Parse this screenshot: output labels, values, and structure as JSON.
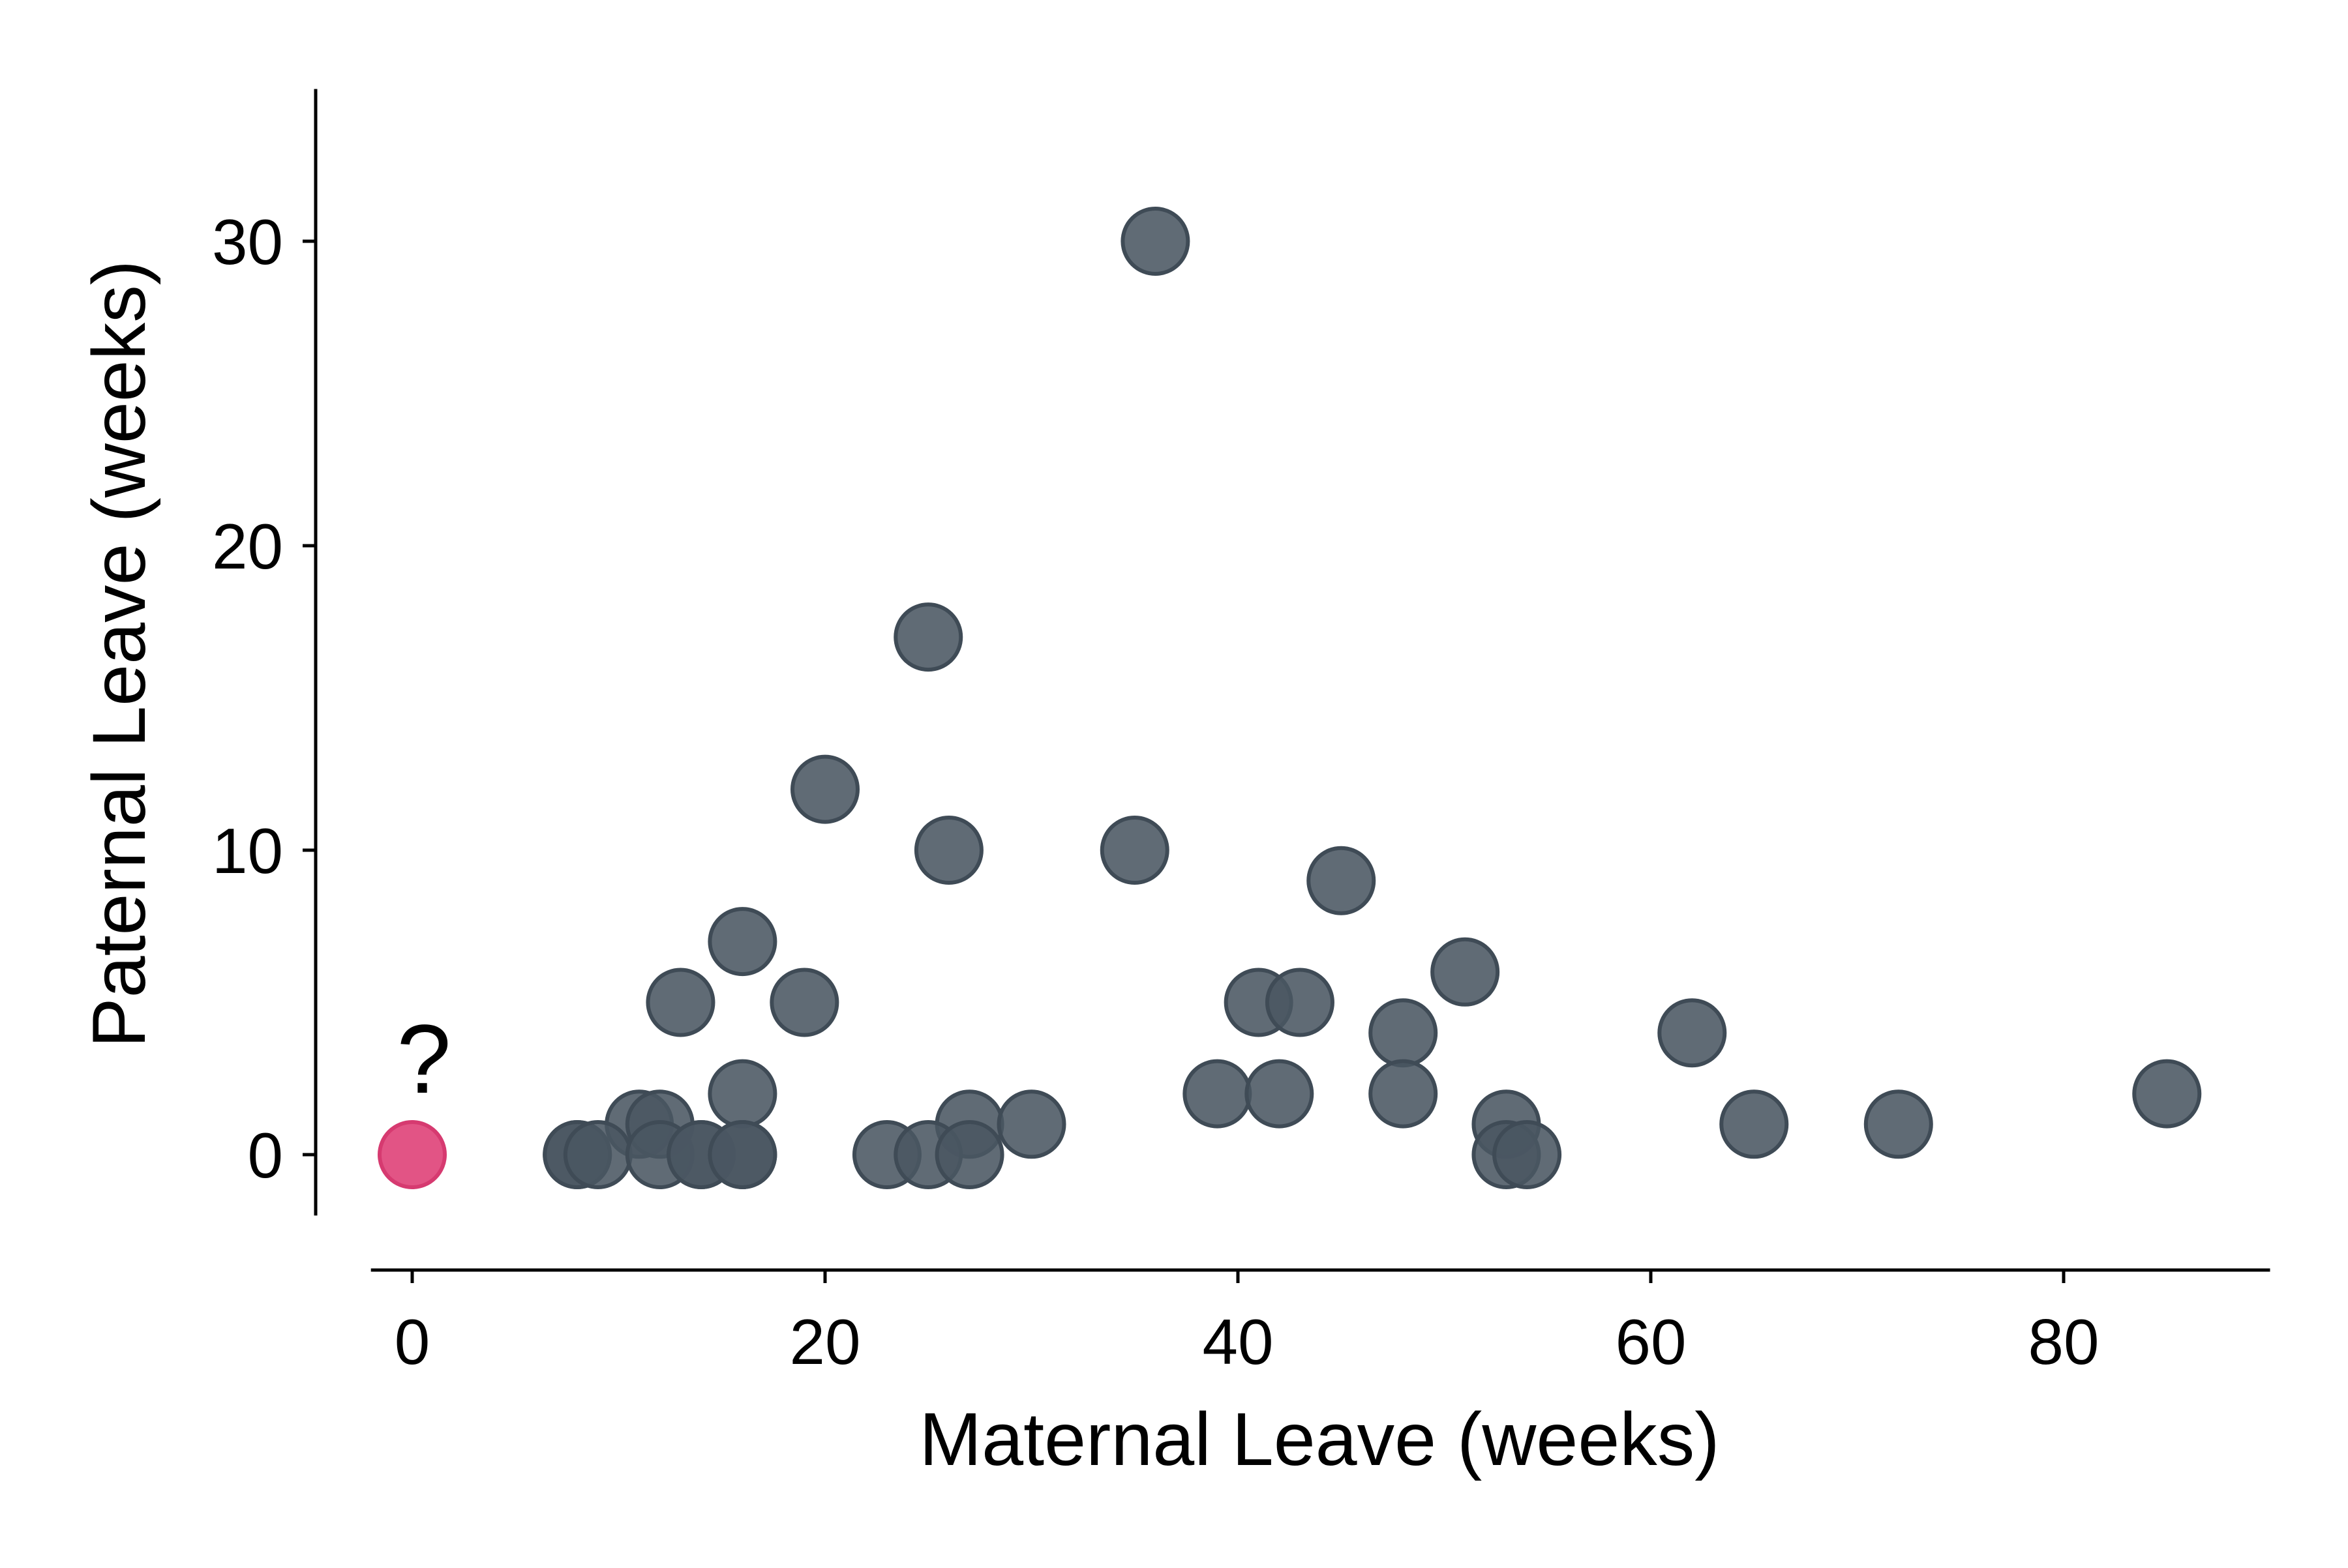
{
  "chart_data": {
    "type": "scatter",
    "title": "",
    "xlabel": "Maternal Leave (weeks)",
    "ylabel": "Paternal Leave (weeks)",
    "xlim": [
      -2,
      90
    ],
    "ylim": [
      -2,
      35
    ],
    "xticks": [
      0,
      20,
      40,
      60,
      80
    ],
    "yticks": [
      0,
      10,
      20,
      30
    ],
    "xtick_labels": [
      "0",
      "20",
      "40",
      "60",
      "80"
    ],
    "ytick_labels": [
      "0",
      "10",
      "20",
      "30"
    ],
    "grid": false,
    "legend": "none",
    "colors": {
      "points": "#4a5762",
      "point_edge": "#3f4b56",
      "highlight": "#e0457b",
      "highlight_edge": "#d63a70"
    },
    "series": [
      {
        "points": [
          {
            "x": 36,
            "y": 30
          },
          {
            "x": 25,
            "y": 17
          },
          {
            "x": 20,
            "y": 12
          },
          {
            "x": 26,
            "y": 10
          },
          {
            "x": 35,
            "y": 10
          },
          {
            "x": 45,
            "y": 9
          },
          {
            "x": 16,
            "y": 7
          },
          {
            "x": 51,
            "y": 6
          },
          {
            "x": 13,
            "y": 5
          },
          {
            "x": 19,
            "y": 5
          },
          {
            "x": 41,
            "y": 5
          },
          {
            "x": 43,
            "y": 5
          },
          {
            "x": 48,
            "y": 4
          },
          {
            "x": 62,
            "y": 4
          },
          {
            "x": 16,
            "y": 2
          },
          {
            "x": 39,
            "y": 2
          },
          {
            "x": 42,
            "y": 2
          },
          {
            "x": 48,
            "y": 2
          },
          {
            "x": 85,
            "y": 2
          },
          {
            "x": 11,
            "y": 1
          },
          {
            "x": 12,
            "y": 1
          },
          {
            "x": 27,
            "y": 1
          },
          {
            "x": 30,
            "y": 1
          },
          {
            "x": 53,
            "y": 1
          },
          {
            "x": 65,
            "y": 1
          },
          {
            "x": 72,
            "y": 1
          },
          {
            "x": 8,
            "y": 0
          },
          {
            "x": 8,
            "y": 0
          },
          {
            "x": 9,
            "y": 0
          },
          {
            "x": 12,
            "y": 0
          },
          {
            "x": 14,
            "y": 0
          },
          {
            "x": 14,
            "y": 0
          },
          {
            "x": 16,
            "y": 0
          },
          {
            "x": 16,
            "y": 0
          },
          {
            "x": 23,
            "y": 0
          },
          {
            "x": 25,
            "y": 0
          },
          {
            "x": 27,
            "y": 0
          },
          {
            "x": 53,
            "y": 0
          },
          {
            "x": 54,
            "y": 0
          }
        ]
      }
    ],
    "highlight_point": {
      "x": 0,
      "y": 0
    },
    "annotations": [
      {
        "text": "?",
        "x": 0,
        "y": 0
      }
    ]
  }
}
